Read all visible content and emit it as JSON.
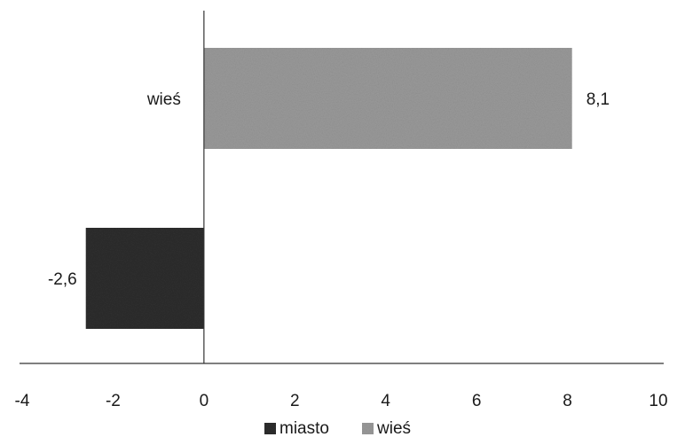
{
  "chart_data": {
    "type": "bar",
    "orientation": "horizontal",
    "categories": [
      "miasto",
      "wieś"
    ],
    "values": [
      -2.6,
      8.1
    ],
    "data_labels": [
      "-2,6",
      "8,1"
    ],
    "category_labels": [
      "",
      "wieś"
    ],
    "series": [
      {
        "name": "miasto",
        "values": [
          -2.6,
          null
        ],
        "color": "#2e2e2e"
      },
      {
        "name": "wieś",
        "values": [
          null,
          8.1
        ],
        "color": "#9a9a9a"
      }
    ],
    "xlim": [
      -4,
      10
    ],
    "xticks": [
      -4,
      -2,
      0,
      2,
      4,
      6,
      8,
      10
    ],
    "grid": false,
    "legend_position": "bottom",
    "title": "",
    "xlabel": "",
    "ylabel": ""
  }
}
